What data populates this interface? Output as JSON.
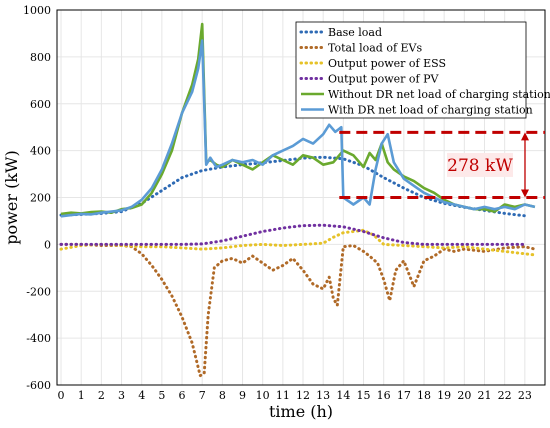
{
  "chart_data": {
    "type": "line",
    "xlabel": "time (h)",
    "ylabel": "power (kW)",
    "xlim": [
      -0.2,
      24
    ],
    "ylim": [
      -600,
      1000
    ],
    "xticks": [
      0,
      1,
      2,
      3,
      4,
      5,
      6,
      7,
      8,
      9,
      10,
      11,
      12,
      13,
      14,
      15,
      16,
      17,
      18,
      19,
      20,
      21,
      22,
      23
    ],
    "yticks": [
      -600,
      -400,
      -200,
      0,
      200,
      400,
      600,
      800,
      1000
    ],
    "grid": true,
    "legend_position": "top-right",
    "series": [
      {
        "name": "Base load",
        "color": "#2e6ab4",
        "style": "dotted",
        "x": [
          0,
          1,
          2,
          3,
          4,
          5,
          6,
          7,
          8,
          9,
          10,
          11,
          12,
          13,
          14,
          15,
          16,
          17,
          18,
          19,
          20,
          21,
          22,
          23
        ],
        "y": [
          125,
          128,
          132,
          140,
          175,
          230,
          285,
          315,
          330,
          340,
          348,
          358,
          368,
          372,
          365,
          335,
          285,
          240,
          200,
          175,
          158,
          145,
          132,
          122
        ]
      },
      {
        "name": "Total load of EVs",
        "color": "#b06a28",
        "style": "dotted",
        "x": [
          0,
          0.5,
          1,
          2,
          3,
          3.5,
          4,
          4.5,
          5,
          5.5,
          6,
          6.5,
          6.9,
          7.1,
          7.3,
          7.6,
          8,
          8.5,
          9,
          9.5,
          10,
          10.5,
          11,
          11.5,
          12,
          12.5,
          13,
          13.3,
          13.5,
          13.7,
          14,
          14.5,
          15,
          15.3,
          15.7,
          16,
          16.3,
          16.6,
          17,
          17.5,
          18,
          18.5,
          19,
          19.5,
          20,
          21,
          22,
          23,
          23.5
        ],
        "y": [
          0,
          0,
          0,
          -5,
          -5,
          -10,
          -40,
          -90,
          -150,
          -220,
          -310,
          -420,
          -560,
          -550,
          -300,
          -100,
          -70,
          -60,
          -80,
          -50,
          -80,
          -110,
          -90,
          -60,
          -110,
          -170,
          -190,
          -140,
          -230,
          -260,
          -10,
          -5,
          -30,
          -50,
          -80,
          -150,
          -240,
          -110,
          -70,
          -180,
          -70,
          -50,
          -20,
          -30,
          -20,
          -30,
          -15,
          -10,
          -20
        ]
      },
      {
        "name": "Output power of ESS",
        "color": "#e6c228",
        "style": "dotted",
        "x": [
          0,
          1,
          2,
          3,
          4,
          5,
          6,
          7,
          8,
          9,
          10,
          11,
          12,
          13,
          13.5,
          14,
          15,
          15.5,
          16,
          17,
          18,
          19,
          20,
          21,
          22,
          23,
          23.5
        ],
        "y": [
          -20,
          -5,
          0,
          -5,
          -10,
          -10,
          -15,
          -20,
          -15,
          -5,
          0,
          -5,
          0,
          5,
          30,
          50,
          60,
          40,
          0,
          -5,
          -10,
          -15,
          -10,
          -20,
          -30,
          -40,
          -45
        ]
      },
      {
        "name": "Output power of PV",
        "color": "#7030a0",
        "style": "dotted",
        "x": [
          0,
          1,
          2,
          3,
          4,
          5,
          6,
          7,
          8,
          9,
          10,
          11,
          12,
          13,
          14,
          15,
          16,
          17,
          18,
          19,
          20,
          21,
          22,
          23
        ],
        "y": [
          0,
          0,
          0,
          0,
          0,
          0,
          0,
          2,
          15,
          35,
          55,
          70,
          80,
          82,
          75,
          55,
          28,
          8,
          0,
          0,
          0,
          0,
          0,
          0
        ]
      },
      {
        "name": "Without DR net load of charging station",
        "color": "#6aa92e",
        "style": "solid",
        "x": [
          0,
          0.5,
          1,
          1.5,
          2,
          2.5,
          3,
          3.5,
          4,
          4.5,
          5,
          5.5,
          6,
          6.5,
          6.8,
          7,
          7.2,
          7.4,
          7.7,
          8,
          8.5,
          9,
          9.5,
          10,
          10.5,
          11,
          11.5,
          12,
          12.5,
          13,
          13.5,
          14,
          14.5,
          15,
          15.3,
          15.6,
          15.9,
          16.2,
          16.5,
          17,
          17.5,
          18,
          18.5,
          19,
          19.5,
          20,
          20.5,
          21,
          21.5,
          22,
          22.5,
          23,
          23.5
        ],
        "y": [
          130,
          135,
          132,
          138,
          140,
          135,
          150,
          155,
          170,
          220,
          300,
          400,
          560,
          680,
          790,
          940,
          350,
          360,
          340,
          330,
          360,
          340,
          320,
          350,
          380,
          360,
          340,
          380,
          370,
          340,
          350,
          400,
          380,
          330,
          390,
          360,
          430,
          350,
          320,
          290,
          270,
          240,
          220,
          190,
          170,
          160,
          150,
          150,
          140,
          170,
          160,
          170,
          160
        ]
      },
      {
        "name": "With DR net load of charging station",
        "color": "#5b9bd5",
        "style": "solid",
        "x": [
          0,
          0.5,
          1,
          1.5,
          2,
          2.5,
          3,
          3.5,
          4,
          4.5,
          5,
          5.5,
          6,
          6.5,
          6.8,
          7,
          7.2,
          7.4,
          7.7,
          8,
          8.5,
          9,
          9.5,
          10,
          10.5,
          11,
          11.5,
          12,
          12.5,
          13,
          13.3,
          13.6,
          13.9,
          14,
          14.5,
          15,
          15.3,
          15.6,
          15.9,
          16.2,
          16.5,
          17,
          17.5,
          18,
          18.5,
          19,
          19.5,
          20,
          20.5,
          21,
          21.5,
          22,
          22.5,
          23,
          23.5
        ],
        "y": [
          120,
          125,
          130,
          128,
          135,
          140,
          145,
          160,
          190,
          240,
          320,
          430,
          560,
          650,
          750,
          870,
          340,
          370,
          330,
          340,
          360,
          350,
          360,
          340,
          380,
          400,
          420,
          450,
          430,
          470,
          510,
          480,
          500,
          200,
          170,
          200,
          170,
          320,
          430,
          470,
          350,
          280,
          250,
          220,
          200,
          180,
          170,
          160,
          150,
          160,
          150,
          160,
          150,
          170,
          160
        ]
      }
    ],
    "annotation": {
      "text": "278 kW",
      "upper_line_y": 478,
      "lower_line_y": 200,
      "x_from": 13.8,
      "x_to": 24
    }
  },
  "colors": {
    "annotation": "#c00000",
    "grid": "#e6e6e6"
  }
}
